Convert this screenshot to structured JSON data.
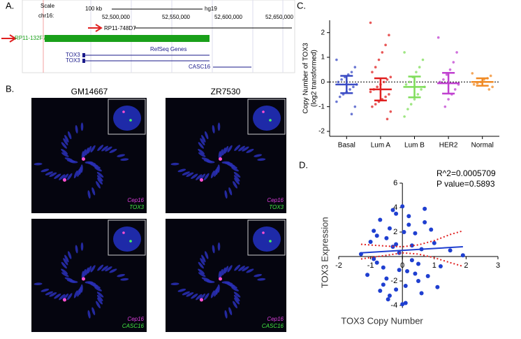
{
  "panel_labels": [
    "A.",
    "B.",
    "C.",
    "D."
  ],
  "genome_browser": {
    "scale": "Scale",
    "chrom": "chr16:",
    "scale_bar": "100 kb",
    "assembly": "hg19",
    "positions": [
      "52,500,000",
      "52,550,000",
      "52,600,000",
      "52,650,000"
    ],
    "clones": [
      "RP11-748D7",
      "RP11-132F7"
    ],
    "track": "RefSeq Genes",
    "genes": [
      "TOX3",
      "TOX3",
      "CASC16"
    ]
  },
  "fish": {
    "columns": [
      "GM14667",
      "ZR7530"
    ],
    "probes": [
      [
        "Cep16",
        "TOX3"
      ],
      [
        "Cep16",
        "TOX3"
      ],
      [
        "Cep16",
        "CASC16"
      ],
      [
        "Cep16",
        "CASC16"
      ]
    ]
  },
  "chart_data": [
    {
      "type": "dot",
      "y_label": [
        "Copy Number of TOX3",
        "(log2 transformed)"
      ],
      "categories": [
        "Basal",
        "Lum A",
        "Lum B",
        "HER2",
        "Normal"
      ],
      "colors": [
        "#3a4bc4",
        "#e02020",
        "#7fdd5a",
        "#c040d0",
        "#f08a24"
      ],
      "points": [
        [
          0.9,
          0.6,
          0.4,
          0.3,
          0.2,
          0.1,
          0,
          -0.1,
          -0.2,
          -0.3,
          -0.4,
          -0.5,
          -0.6,
          -0.8,
          -1.0,
          -1.3
        ],
        [
          2.4,
          1.9,
          1.5,
          1.2,
          0.9,
          0.6,
          0.4,
          0.2,
          0.1,
          0,
          -0.1,
          -0.2,
          -0.3,
          -0.4,
          -0.5,
          -0.6,
          -0.7,
          -0.8,
          -0.9,
          -1.0,
          -1.2,
          -1.5
        ],
        [
          1.2,
          0.9,
          0.6,
          0.4,
          0.2,
          0,
          -0.1,
          -0.2,
          -0.3,
          -0.5,
          -0.7,
          -0.9,
          -1.1,
          -1.4
        ],
        [
          1.8,
          1.2,
          0.8,
          0.5,
          0.3,
          0.1,
          0,
          -0.1,
          -0.3,
          -0.5,
          -0.7,
          -1.0
        ],
        [
          0.35,
          0.25,
          0.15,
          0.1,
          0,
          -0.05,
          -0.1,
          -0.2,
          -0.3
        ]
      ],
      "means": [
        -0.1,
        -0.3,
        -0.2,
        -0.05,
        0
      ],
      "sds": [
        0.35,
        0.45,
        0.42,
        0.42,
        0.15
      ],
      "ylim": [
        -2.2,
        2.5
      ],
      "yticks": [
        -2,
        -1,
        0,
        1,
        2
      ],
      "reference_line": 0
    },
    {
      "type": "scatter",
      "x_label": "TOX3 Copy Number",
      "y_label": "TOX3 Expression",
      "annotations": [
        "R^2=0.0005709",
        "P value=0.5893"
      ],
      "color": "#1f3fd0",
      "x": [
        -1.3,
        -1.1,
        -1.0,
        -0.9,
        -0.8,
        -0.7,
        -0.6,
        -0.5,
        -0.4,
        -0.3,
        -0.2,
        -0.1,
        0,
        0.1,
        0.2,
        0.3,
        0.4,
        0.5,
        0.6,
        0.7,
        0.8,
        1.0,
        1.2,
        1.5,
        1.9,
        -0.6,
        -0.4,
        -0.2,
        0,
        0.2,
        0.4,
        -0.8,
        -0.5,
        -0.3,
        -0.1,
        0.1,
        0.3,
        0.6,
        -0.7,
        -0.2,
        0.05,
        0.5,
        0.9,
        -0.9,
        -0.45,
        0.15,
        0.7,
        1.1
      ],
      "y": [
        0.2,
        -1.5,
        1.2,
        2.1,
        -0.5,
        3.0,
        -2.3,
        1.5,
        -3.2,
        0.8,
        3.5,
        -1.1,
        4.1,
        -3.8,
        2.6,
        -0.3,
        1.9,
        -2.0,
        0.6,
        2.8,
        -1.6,
        1.1,
        -0.8,
        0.5,
        0.1,
        -0.9,
        2.3,
        -2.7,
        -3.9,
        3.3,
        -1.4,
        1.7,
        -1.8,
        3.8,
        0.3,
        -2.4,
        0.9,
        -3.0,
        -2.8,
        1.0,
        2.0,
        -0.6,
        2.2,
        -0.2,
        -3.5,
        -1.2,
        3.9,
        -2.5
      ],
      "fit": {
        "x": [
          -1.3,
          1.9
        ],
        "y": [
          0.3,
          0.8
        ]
      },
      "band": {
        "x": [
          -1.3,
          -0.5,
          0,
          0.5,
          1,
          1.5,
          1.9
        ],
        "upper": [
          1.0,
          0.85,
          0.8,
          0.95,
          1.3,
          1.8,
          2.1
        ],
        "lower": [
          -0.2,
          0.1,
          0.3,
          0.2,
          -0.1,
          -0.5,
          -0.8
        ]
      },
      "band_color": "#e02020",
      "xlim": [
        -2,
        3
      ],
      "xticks": [
        -2,
        -1,
        0,
        1,
        2,
        3
      ],
      "ylim": [
        -4.2,
        6
      ],
      "yticks": [
        -4,
        -2,
        2,
        4,
        6
      ]
    }
  ]
}
